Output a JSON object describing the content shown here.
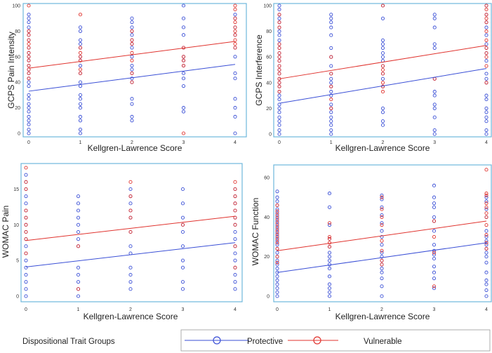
{
  "colors": {
    "protective": "#3a4fd6",
    "vulnerable": "#e0332e",
    "frame": "#6fb7dc"
  },
  "legend": {
    "title": "Dispositional Trait Groups",
    "protective": "Protective",
    "vulnerable": "Vulnerable"
  },
  "chart_data": [
    {
      "type": "scatter",
      "ylabel": "GCPS Pain Intensity",
      "xlabel": "Kellgren-Lawrence Score",
      "x_ticks": [
        "0",
        "1",
        "2",
        "3",
        "4"
      ],
      "y_ticks": [
        "0",
        "20",
        "40",
        "60",
        "80",
        "100"
      ],
      "xlim": [
        0,
        4
      ],
      "ylim": [
        0,
        100
      ],
      "series": [
        {
          "name": "Protective",
          "points": {
            "0": [
              0,
              3,
              7,
              10,
              13,
              17,
              20,
              23,
              27,
              30,
              37,
              40,
              43,
              47,
              50,
              53,
              57,
              60,
              63,
              67,
              73,
              77,
              80,
              83,
              87,
              90,
              93
            ],
            "1": [
              0,
              3,
              10,
              13,
              20,
              23,
              27,
              30,
              37,
              40,
              47,
              53,
              57,
              60,
              67,
              70,
              73,
              80,
              83
            ],
            "2": [
              10,
              13,
              23,
              27,
              40,
              43,
              47,
              50,
              53,
              60,
              67,
              70,
              73,
              77,
              80,
              83,
              87,
              90
            ],
            "3": [
              17,
              20,
              37,
              43,
              47,
              53,
              57,
              60,
              67,
              77,
              83,
              90,
              100
            ],
            "4": [
              0,
              13,
              20,
              27,
              43,
              47,
              60,
              67,
              77,
              83,
              90,
              93
            ]
          },
          "fit": [
            33,
            54
          ]
        },
        {
          "name": "Vulnerable",
          "points": {
            "0": [
              43,
              47,
              50,
              53,
              57,
              60,
              63,
              67,
              70,
              73,
              77,
              80,
              100
            ],
            "1": [
              47,
              50,
              57,
              60,
              63,
              67,
              93
            ],
            "2": [
              40,
              47,
              57,
              63,
              70,
              73,
              80
            ],
            "3": [
              0,
              53,
              57,
              60,
              67
            ],
            "4": [
              67,
              70,
              73,
              77,
              80,
              83,
              87,
              90,
              97,
              100
            ]
          },
          "fit": [
            51,
            72
          ]
        }
      ]
    },
    {
      "type": "scatter",
      "ylabel": "GCPS Interference",
      "xlabel": "Kellgren-Lawrence Score",
      "x_ticks": [
        "0",
        "1",
        "2",
        "3",
        "4"
      ],
      "y_ticks": [
        "0",
        "20",
        "40",
        "60",
        "80",
        "100"
      ],
      "xlim": [
        0,
        4
      ],
      "ylim": [
        0,
        100
      ],
      "series": [
        {
          "name": "Protective",
          "points": {
            "0": [
              0,
              3,
              7,
              10,
              13,
              17,
              20,
              23,
              27,
              30,
              33,
              37,
              40,
              43,
              47,
              50,
              53,
              57,
              60,
              63,
              67,
              70,
              73,
              77,
              80,
              83,
              87,
              90,
              93,
              97,
              100
            ],
            "1": [
              0,
              3,
              7,
              10,
              13,
              17,
              20,
              23,
              30,
              33,
              37,
              40,
              43,
              47,
              53,
              60,
              67,
              77,
              83,
              87,
              90,
              93
            ],
            "2": [
              7,
              10,
              17,
              20,
              37,
              43,
              47,
              53,
              57,
              60,
              63,
              67,
              70,
              73,
              90,
              100
            ],
            "3": [
              0,
              3,
              13,
              20,
              23,
              30,
              33,
              43,
              67,
              70,
              83,
              90,
              93
            ],
            "4": [
              0,
              3,
              10,
              13,
              17,
              20,
              27,
              30,
              40,
              43,
              47,
              57,
              63,
              67,
              70,
              77,
              83,
              87,
              93,
              100
            ]
          },
          "fit": [
            24,
            51
          ]
        },
        {
          "name": "Vulnerable",
          "points": {
            "0": [
              33,
              37,
              40,
              43,
              47,
              50,
              53,
              57,
              60,
              63,
              67,
              70,
              83,
              87,
              93
            ],
            "1": [
              20,
              27,
              37,
              47,
              60
            ],
            "2": [
              33,
              37,
              40,
              47,
              50,
              53,
              100
            ],
            "3": [
              43
            ],
            "4": [
              40,
              53,
              60,
              63,
              67,
              73,
              80,
              87,
              90,
              93,
              97,
              100
            ]
          },
          "fit": [
            43,
            69
          ]
        }
      ]
    },
    {
      "type": "scatter",
      "ylabel": "WOMAC Pain",
      "xlabel": "Kellgren-Lawrence Score",
      "x_ticks": [
        "0",
        "1",
        "2",
        "3",
        "4"
      ],
      "y_ticks": [
        "0",
        "5",
        "10",
        "15"
      ],
      "xlim": [
        0,
        4
      ],
      "ylim": [
        0,
        18
      ],
      "series": [
        {
          "name": "Protective",
          "points": {
            "0": [
              0,
              1,
              2,
              3,
              4,
              5,
              6,
              7,
              8,
              9,
              10,
              11,
              12,
              13,
              14,
              15,
              16,
              17
            ],
            "1": [
              0,
              1,
              2,
              3,
              4,
              7,
              8,
              9,
              10,
              11,
              12,
              13,
              14
            ],
            "2": [
              1,
              2,
              3,
              4,
              6,
              7,
              9,
              11,
              12,
              13,
              14,
              15
            ],
            "3": [
              1,
              2,
              4,
              5,
              7,
              9,
              10,
              11,
              13,
              15
            ],
            "4": [
              1,
              2,
              3,
              4,
              5,
              6,
              7,
              8,
              9,
              10,
              11,
              12,
              13,
              14,
              15
            ]
          },
          "fit": [
            4.1,
            7.5
          ]
        },
        {
          "name": "Vulnerable",
          "points": {
            "0": [
              6,
              8,
              9,
              10,
              11,
              12,
              15,
              16,
              18
            ],
            "1": [
              1,
              7
            ],
            "2": [
              9,
              11,
              12,
              14,
              16
            ],
            "3": [
              10
            ],
            "4": [
              4,
              7,
              10,
              11,
              12,
              13,
              14,
              15,
              16
            ]
          },
          "fit": [
            7.8,
            11.2
          ]
        }
      ]
    },
    {
      "type": "scatter",
      "ylabel": "WOMAC Function",
      "xlabel": "Kellgren-Lawrence Score",
      "x_ticks": [
        "0",
        "1",
        "2",
        "3",
        "4"
      ],
      "y_ticks": [
        "0",
        "20",
        "40",
        "60"
      ],
      "xlim": [
        0,
        4
      ],
      "ylim": [
        0,
        65
      ],
      "series": [
        {
          "name": "Protective",
          "points": {
            "0": [
              0,
              2,
              4,
              6,
              8,
              10,
              12,
              14,
              16,
              18,
              20,
              22,
              24,
              26,
              28,
              30,
              32,
              34,
              36,
              38,
              40,
              42,
              44,
              46,
              48,
              50,
              53
            ],
            "1": [
              0,
              2,
              4,
              6,
              10,
              14,
              16,
              18,
              20,
              22,
              25,
              29,
              36,
              45,
              52
            ],
            "2": [
              0,
              5,
              9,
              12,
              14,
              16,
              18,
              20,
              22,
              26,
              30,
              33,
              37,
              41,
              45,
              49,
              51
            ],
            "3": [
              4,
              9,
              12,
              15,
              19,
              21,
              23,
              26,
              33,
              38,
              40,
              45,
              47,
              50,
              56
            ],
            "4": [
              0,
              3,
              6,
              8,
              12,
              17,
              20,
              22,
              24,
              26,
              28,
              30,
              33,
              40,
              44,
              48,
              50
            ]
          },
          "fit": [
            12,
            27
          ]
        },
        {
          "name": "Vulnerable",
          "points": {
            "0": [
              17,
              20,
              24,
              27,
              29,
              31,
              33,
              35,
              37,
              39,
              41,
              43,
              46
            ],
            "1": [
              25,
              27,
              29,
              30,
              37
            ],
            "2": [
              16,
              18,
              23,
              28,
              36,
              40,
              44,
              50
            ],
            "3": [
              5,
              22,
              30,
              38
            ],
            "4": [
              24,
              27,
              31,
              36,
              40,
              42,
              45,
              47,
              51,
              52,
              64
            ]
          },
          "fit": [
            23,
            38
          ]
        }
      ]
    }
  ]
}
